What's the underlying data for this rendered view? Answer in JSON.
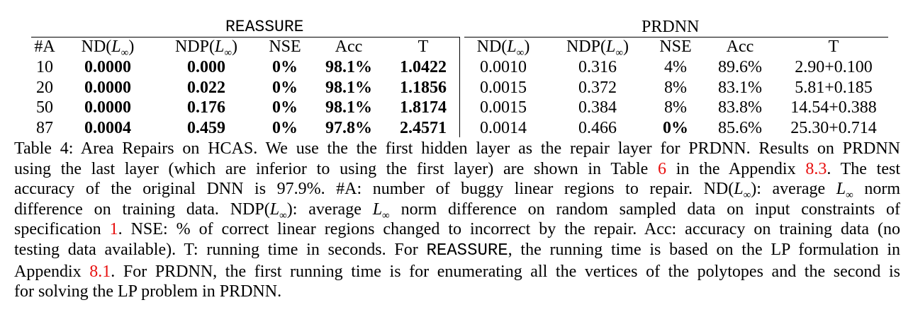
{
  "table": {
    "group_headers": [
      "REASSURE",
      "PRDNN"
    ],
    "columns": [
      {
        "pre": "#A",
        "sub": "",
        "post": ""
      },
      {
        "pre": "ND(",
        "sub": "∞",
        "post": ")"
      },
      {
        "pre": "NDP(",
        "sub": "∞",
        "post": ")"
      },
      {
        "pre": "NSE",
        "sub": "",
        "post": ""
      },
      {
        "pre": "Acc",
        "sub": "",
        "post": ""
      },
      {
        "pre": "T",
        "sub": "",
        "post": ""
      },
      {
        "pre": "ND(",
        "sub": "∞",
        "post": ")"
      },
      {
        "pre": "NDP(",
        "sub": "∞",
        "post": ")"
      },
      {
        "pre": "NSE",
        "sub": "",
        "post": ""
      },
      {
        "pre": "Acc",
        "sub": "",
        "post": ""
      },
      {
        "pre": "T",
        "sub": "",
        "post": ""
      }
    ],
    "rows": [
      {
        "cells": [
          "10",
          "0.0000",
          "0.000",
          "0%",
          "98.1%",
          "1.0422",
          "0.0010",
          "0.316",
          "4%",
          "89.6%",
          "2.90+0.100"
        ],
        "bold": [
          false,
          true,
          true,
          true,
          true,
          true,
          false,
          false,
          false,
          false,
          false
        ]
      },
      {
        "cells": [
          "20",
          "0.0000",
          "0.022",
          "0%",
          "98.1%",
          "1.1856",
          "0.0015",
          "0.372",
          "8%",
          "83.1%",
          "5.81+0.185"
        ],
        "bold": [
          false,
          true,
          true,
          true,
          true,
          true,
          false,
          false,
          false,
          false,
          false
        ]
      },
      {
        "cells": [
          "50",
          "0.0000",
          "0.176",
          "0%",
          "98.1%",
          "1.8174",
          "0.0015",
          "0.384",
          "8%",
          "83.8%",
          "14.54+0.388"
        ],
        "bold": [
          false,
          true,
          true,
          true,
          true,
          true,
          false,
          false,
          false,
          false,
          false
        ]
      },
      {
        "cells": [
          "87",
          "0.0004",
          "0.459",
          "0%",
          "97.8%",
          "2.4571",
          "0.0014",
          "0.466",
          "0%",
          "85.6%",
          "25.30+0.714"
        ],
        "bold": [
          false,
          true,
          true,
          true,
          true,
          true,
          false,
          false,
          true,
          false,
          false
        ]
      }
    ]
  },
  "caption": {
    "lines": [
      {
        "justify": true,
        "parts": [
          {
            "t": "Table 4: Area Repairs on HCAS. We use the the first hidden layer as the repair layer for PRDNN. Results on PRDNN"
          }
        ]
      },
      {
        "justify": true,
        "parts": [
          {
            "t": "using the last layer (which are inferior to using the first layer) are shown in Table "
          },
          {
            "t": "6",
            "ref": true
          },
          {
            "t": " in the Appendix "
          },
          {
            "t": "8.3",
            "ref": true
          },
          {
            "t": ". The test"
          }
        ]
      },
      {
        "justify": true,
        "parts": [
          {
            "t": "accuracy of the original DNN is 97.9%. #A: number of buggy linear regions to repair. ND("
          },
          {
            "L": true
          },
          {
            "t": "): average "
          },
          {
            "L": true
          },
          {
            "t": " norm"
          }
        ]
      },
      {
        "justify": true,
        "parts": [
          {
            "t": "difference on training data. NDP("
          },
          {
            "L": true
          },
          {
            "t": "): average "
          },
          {
            "L": true
          },
          {
            "t": " norm difference on random sampled data on input constraints of"
          }
        ]
      },
      {
        "justify": true,
        "parts": [
          {
            "t": "specification "
          },
          {
            "t": "1",
            "ref": true
          },
          {
            "t": ". NSE: % of correct linear regions changed to incorrect by the repair. Acc: accuracy on training data (no"
          }
        ]
      },
      {
        "justify": true,
        "parts": [
          {
            "t": "testing data available). T: running time in seconds. For "
          },
          {
            "t": "REASSURE",
            "mono": true
          },
          {
            "t": ", the running time is based on the LP formulation in"
          }
        ]
      },
      {
        "justify": true,
        "parts": [
          {
            "t": "Appendix "
          },
          {
            "t": "8.1",
            "ref": true
          },
          {
            "t": ". For PRDNN, the first running time is for enumerating all the vertices of the polytopes and the second is"
          }
        ]
      },
      {
        "justify": false,
        "parts": [
          {
            "t": "for solving the LP problem in PRDNN."
          }
        ]
      }
    ]
  }
}
